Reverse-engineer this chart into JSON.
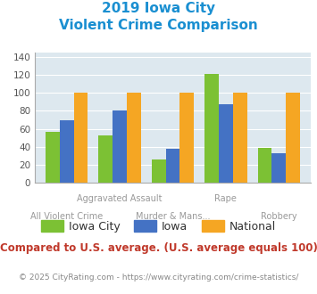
{
  "title_line1": "2019 Iowa City",
  "title_line2": "Violent Crime Comparison",
  "iowa_city": [
    57,
    53,
    26,
    121,
    39
  ],
  "iowa": [
    70,
    80,
    38,
    87,
    33
  ],
  "national": [
    100,
    100,
    100,
    100,
    100
  ],
  "colors": {
    "iowa_city": "#7cc134",
    "iowa": "#4472c4",
    "national": "#f5a623"
  },
  "ylim": [
    0,
    145
  ],
  "yticks": [
    0,
    20,
    40,
    60,
    80,
    100,
    120,
    140
  ],
  "row1_indices": [
    1,
    3
  ],
  "row2_indices": [
    0,
    2,
    4
  ],
  "row1_labels": [
    "Aggravated Assault",
    "Rape"
  ],
  "row2_labels": [
    "All Violent Crime",
    "Murder & Mans...",
    "Robbery"
  ],
  "legend_labels": [
    "Iowa City",
    "Iowa",
    "National"
  ],
  "note": "Compared to U.S. average. (U.S. average equals 100)",
  "footer": "© 2025 CityRating.com - https://www.cityrating.com/crime-statistics/",
  "title_color": "#1a8fd1",
  "note_color": "#c0392b",
  "footer_color": "#888888",
  "plot_bg": "#dde8ef"
}
